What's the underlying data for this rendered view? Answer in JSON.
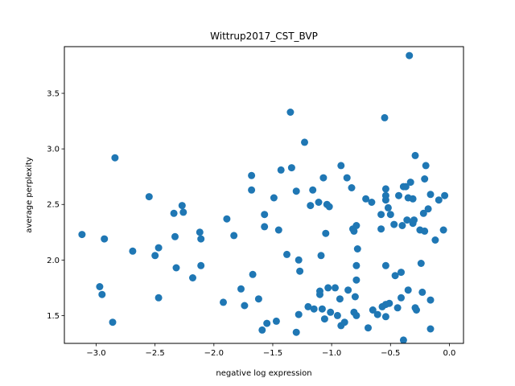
{
  "chart_data": {
    "type": "scatter",
    "title": "Wittrup2017_CST_BVP",
    "xlabel": "negative log expression",
    "ylabel": "average perplexity",
    "xlim": [
      -3.27,
      0.12
    ],
    "ylim": [
      1.25,
      3.92
    ],
    "xticks": [
      -3.0,
      -2.5,
      -2.0,
      -1.5,
      -1.0,
      -0.5,
      0.0
    ],
    "xtick_labels": [
      "−3.0",
      "−2.5",
      "−2.0",
      "−1.5",
      "−1.0",
      "−0.5",
      "0.0"
    ],
    "yticks": [
      1.5,
      2.0,
      2.5,
      3.0,
      3.5
    ],
    "ytick_labels": [
      "1.5",
      "2.0",
      "2.5",
      "3.0",
      "3.5"
    ],
    "grid": false,
    "marker_color": "#1f77b4",
    "points": [
      [
        -3.12,
        2.23
      ],
      [
        -2.97,
        1.76
      ],
      [
        -2.95,
        1.69
      ],
      [
        -2.93,
        2.19
      ],
      [
        -2.86,
        1.44
      ],
      [
        -2.84,
        2.92
      ],
      [
        -2.69,
        2.08
      ],
      [
        -2.55,
        2.57
      ],
      [
        -2.5,
        2.04
      ],
      [
        -2.47,
        2.11
      ],
      [
        -2.47,
        1.66
      ],
      [
        -2.34,
        2.42
      ],
      [
        -2.33,
        2.21
      ],
      [
        -2.32,
        1.93
      ],
      [
        -2.27,
        2.49
      ],
      [
        -2.26,
        2.43
      ],
      [
        -2.18,
        1.84
      ],
      [
        -2.12,
        2.25
      ],
      [
        -2.11,
        2.19
      ],
      [
        -2.11,
        1.95
      ],
      [
        -1.92,
        1.62
      ],
      [
        -1.89,
        2.37
      ],
      [
        -1.83,
        2.22
      ],
      [
        -1.77,
        1.74
      ],
      [
        -1.74,
        1.59
      ],
      [
        -1.68,
        2.76
      ],
      [
        -1.68,
        2.63
      ],
      [
        -1.67,
        1.87
      ],
      [
        -1.62,
        1.65
      ],
      [
        -1.59,
        1.37
      ],
      [
        -1.57,
        2.41
      ],
      [
        -1.57,
        2.3
      ],
      [
        -1.55,
        1.43
      ],
      [
        -1.49,
        2.56
      ],
      [
        -1.47,
        1.45
      ],
      [
        -1.45,
        2.27
      ],
      [
        -1.43,
        2.81
      ],
      [
        -1.38,
        2.05
      ],
      [
        -1.35,
        3.33
      ],
      [
        -1.34,
        2.83
      ],
      [
        -1.3,
        2.62
      ],
      [
        -1.3,
        1.35
      ],
      [
        -1.28,
        2.0
      ],
      [
        -1.27,
        1.9
      ],
      [
        -1.28,
        1.51
      ],
      [
        -1.23,
        3.06
      ],
      [
        -1.2,
        1.58
      ],
      [
        -1.18,
        2.49
      ],
      [
        -1.16,
        2.63
      ],
      [
        -1.15,
        1.56
      ],
      [
        -1.11,
        2.52
      ],
      [
        -1.1,
        1.72
      ],
      [
        -1.1,
        1.69
      ],
      [
        -1.09,
        2.04
      ],
      [
        -1.08,
        1.56
      ],
      [
        -1.07,
        2.74
      ],
      [
        -1.06,
        1.47
      ],
      [
        -1.05,
        2.24
      ],
      [
        -1.04,
        2.5
      ],
      [
        -1.03,
        1.75
      ],
      [
        -1.02,
        2.48
      ],
      [
        -1.01,
        1.53
      ],
      [
        -0.97,
        1.75
      ],
      [
        -0.95,
        1.5
      ],
      [
        -0.93,
        1.65
      ],
      [
        -0.92,
        2.85
      ],
      [
        -0.92,
        1.41
      ],
      [
        -0.89,
        1.44
      ],
      [
        -0.87,
        2.74
      ],
      [
        -0.86,
        1.73
      ],
      [
        -0.83,
        2.65
      ],
      [
        -0.82,
        2.28
      ],
      [
        -0.81,
        2.26
      ],
      [
        -0.81,
        1.53
      ],
      [
        -0.8,
        1.67
      ],
      [
        -0.79,
        2.31
      ],
      [
        -0.79,
        1.5
      ],
      [
        -0.79,
        1.82
      ],
      [
        -0.79,
        1.95
      ],
      [
        -0.78,
        2.1
      ],
      [
        -0.71,
        2.55
      ],
      [
        -0.69,
        1.39
      ],
      [
        -0.66,
        2.52
      ],
      [
        -0.65,
        1.55
      ],
      [
        -0.61,
        1.51
      ],
      [
        -0.58,
        2.41
      ],
      [
        -0.58,
        2.28
      ],
      [
        -0.57,
        1.58
      ],
      [
        -0.55,
        3.28
      ],
      [
        -0.54,
        2.64
      ],
      [
        -0.54,
        2.58
      ],
      [
        -0.54,
        2.54
      ],
      [
        -0.54,
        1.95
      ],
      [
        -0.54,
        1.6
      ],
      [
        -0.54,
        1.49
      ],
      [
        -0.52,
        2.47
      ],
      [
        -0.51,
        1.61
      ],
      [
        -0.5,
        2.41
      ],
      [
        -0.47,
        2.32
      ],
      [
        -0.46,
        1.86
      ],
      [
        -0.44,
        1.57
      ],
      [
        -0.43,
        2.58
      ],
      [
        -0.41,
        1.66
      ],
      [
        -0.41,
        1.89
      ],
      [
        -0.4,
        2.31
      ],
      [
        -0.39,
        2.66
      ],
      [
        -0.39,
        1.28
      ],
      [
        -0.37,
        2.66
      ],
      [
        -0.36,
        2.36
      ],
      [
        -0.35,
        2.56
      ],
      [
        -0.35,
        1.73
      ],
      [
        -0.34,
        3.84
      ],
      [
        -0.33,
        2.7
      ],
      [
        -0.31,
        2.33
      ],
      [
        -0.31,
        2.55
      ],
      [
        -0.3,
        2.36
      ],
      [
        -0.29,
        2.94
      ],
      [
        -0.29,
        1.57
      ],
      [
        -0.28,
        1.55
      ],
      [
        -0.25,
        2.27
      ],
      [
        -0.24,
        1.97
      ],
      [
        -0.23,
        1.71
      ],
      [
        -0.22,
        2.42
      ],
      [
        -0.21,
        2.73
      ],
      [
        -0.21,
        2.26
      ],
      [
        -0.2,
        2.85
      ],
      [
        -0.18,
        2.46
      ],
      [
        -0.16,
        2.59
      ],
      [
        -0.16,
        1.64
      ],
      [
        -0.16,
        1.38
      ],
      [
        -0.12,
        2.18
      ],
      [
        -0.09,
        2.54
      ],
      [
        -0.05,
        2.27
      ],
      [
        -0.04,
        2.58
      ]
    ]
  }
}
